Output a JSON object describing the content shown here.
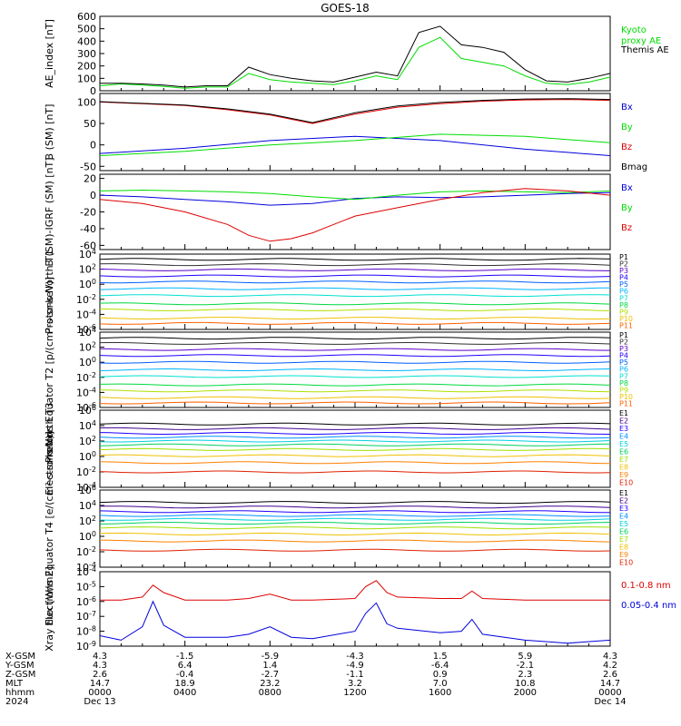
{
  "title": "GOES-18",
  "colors": {
    "black": "#000000",
    "green": "#00dd00",
    "blue": "#0000dd",
    "red": "#dd0000",
    "p": [
      "#000000",
      "#303030",
      "#5a00c8",
      "#2000ff",
      "#0060ff",
      "#00b4ff",
      "#00e0d0",
      "#00d840",
      "#b0e000",
      "#f0c000",
      "#ff6000"
    ],
    "e": [
      "#000000",
      "#400090",
      "#2000ff",
      "#0090ff",
      "#00d0e0",
      "#00d060",
      "#a0e000",
      "#f0c000",
      "#ff8000",
      "#e02000",
      "#a00000"
    ]
  },
  "chart_data": [
    {
      "type": "line",
      "ylabel": "AE_index [nT]",
      "ylim": [
        0,
        600
      ],
      "ticks": [
        "600",
        "500",
        "400",
        "300",
        "200",
        "100",
        "0"
      ],
      "series": [
        {
          "name": "Kyoto proxy AE",
          "label_lines": [
            "Kyoto",
            "proxy AE"
          ],
          "color": "green",
          "x": [
            0,
            1,
            2,
            3,
            4,
            5,
            6,
            7,
            8,
            9,
            10,
            11,
            12,
            13,
            14,
            15,
            16,
            17,
            18,
            19,
            20,
            21,
            22,
            23,
            24
          ],
          "y": [
            40,
            55,
            45,
            35,
            20,
            30,
            30,
            140,
            90,
            70,
            60,
            50,
            80,
            120,
            90,
            350,
            430,
            260,
            230,
            200,
            120,
            60,
            50,
            70,
            110
          ]
        },
        {
          "name": "Themis AE",
          "label_lines": [
            "Themis AE"
          ],
          "color": "black",
          "x": [
            0,
            1,
            2,
            3,
            4,
            5,
            6,
            7,
            8,
            9,
            10,
            11,
            12,
            13,
            14,
            15,
            16,
            17,
            18,
            19,
            20,
            21,
            22,
            23,
            24
          ],
          "y": [
            60,
            60,
            55,
            45,
            30,
            40,
            40,
            190,
            130,
            100,
            80,
            70,
            110,
            150,
            120,
            470,
            520,
            370,
            350,
            310,
            170,
            80,
            70,
            100,
            140
          ]
        }
      ]
    },
    {
      "type": "line",
      "ylabel": "B (SM) [nT]",
      "ylim": [
        -60,
        120
      ],
      "ticks": [
        "100",
        "50",
        "0",
        "-50"
      ],
      "series": [
        {
          "name": "Bx",
          "color": "blue",
          "x": [
            0,
            4,
            8,
            12,
            16,
            20,
            24
          ],
          "y": [
            -20,
            -8,
            10,
            20,
            10,
            -10,
            -25
          ]
        },
        {
          "name": "By",
          "color": "green",
          "x": [
            0,
            4,
            8,
            12,
            16,
            20,
            24
          ],
          "y": [
            -25,
            -15,
            0,
            10,
            25,
            20,
            5
          ]
        },
        {
          "name": "Bz",
          "color": "red",
          "x": [
            0,
            2,
            4,
            6,
            8,
            10,
            12,
            14,
            16,
            18,
            20,
            22,
            24
          ],
          "y": [
            100,
            96,
            92,
            82,
            70,
            50,
            72,
            88,
            96,
            102,
            105,
            106,
            104
          ]
        },
        {
          "name": "Bmag",
          "color": "black",
          "x": [
            0,
            2,
            4,
            6,
            8,
            10,
            12,
            14,
            16,
            18,
            20,
            22,
            24
          ],
          "y": [
            101,
            97,
            93,
            84,
            72,
            52,
            75,
            91,
            99,
            104,
            107,
            108,
            106
          ]
        }
      ]
    },
    {
      "type": "line",
      "ylabel": "B (SM)-IGRF (SM) [nT]",
      "ylim": [
        -65,
        25
      ],
      "ticks": [
        "20",
        "0",
        "-20",
        "-40",
        "-60"
      ],
      "series": [
        {
          "name": "Bx",
          "color": "blue",
          "x": [
            0,
            2,
            4,
            6,
            8,
            10,
            12,
            14,
            16,
            18,
            20,
            22,
            24
          ],
          "y": [
            0,
            -2,
            -5,
            -8,
            -12,
            -10,
            -4,
            -2,
            -3,
            -2,
            0,
            2,
            3
          ]
        },
        {
          "name": "By",
          "color": "green",
          "x": [
            0,
            2,
            4,
            6,
            8,
            10,
            12,
            14,
            16,
            18,
            20,
            22,
            24
          ],
          "y": [
            5,
            6,
            5,
            4,
            2,
            -2,
            -5,
            0,
            4,
            5,
            4,
            3,
            5
          ]
        },
        {
          "name": "Bz",
          "color": "red",
          "x": [
            0,
            2,
            4,
            6,
            7,
            8,
            9,
            10,
            11,
            12,
            14,
            16,
            18,
            20,
            22,
            24
          ],
          "y": [
            -5,
            -10,
            -20,
            -35,
            -48,
            -55,
            -52,
            -45,
            -35,
            -25,
            -15,
            -5,
            3,
            8,
            5,
            0
          ]
        }
      ]
    },
    {
      "type": "line",
      "ylabel": "Protons North T1",
      "log": true,
      "ylim": [
        -6,
        4
      ],
      "ticks": [
        "10^4",
        "10^2",
        "10^0",
        "10^-2",
        "10^-4",
        "10^-6"
      ],
      "legend": [
        "P1",
        "P2",
        "P3",
        "P4",
        "P5",
        "P6",
        "P7",
        "P8",
        "P9",
        "P10",
        "P11"
      ],
      "levels": [
        3.3,
        2.6,
        1.9,
        1.1,
        0.3,
        -0.6,
        -1.5,
        -2.6,
        -3.4,
        -4.5,
        -5.2
      ]
    },
    {
      "type": "line",
      "ylabel": "Protons Equator T2 [p/(cm²-s-sr-keV)]",
      "log": true,
      "ylim": [
        -6,
        4
      ],
      "ticks": [
        "10^4",
        "10^2",
        "10^0",
        "10^-2",
        "10^-4",
        "10^-6"
      ],
      "legend": [
        "P1",
        "P2",
        "P3",
        "P4",
        "P5",
        "P6",
        "P7",
        "P8",
        "P9",
        "P10",
        "P11"
      ],
      "levels": [
        3.2,
        2.5,
        1.7,
        0.9,
        0.0,
        -1.0,
        -1.9,
        -3.0,
        -3.8,
        -4.7,
        -5.4
      ]
    },
    {
      "type": "line",
      "ylabel": "Electrons North T3",
      "log": true,
      "ylim": [
        -4,
        6
      ],
      "ticks": [
        "10^6",
        "10^4",
        "10^2",
        "10^0",
        "10^-2",
        "10^-4"
      ],
      "legend": [
        "E1",
        "E2",
        "E3",
        "E4",
        "E5",
        "E6",
        "E7",
        "E8",
        "E9",
        "E10"
      ],
      "levels": [
        4.2,
        3.6,
        3.0,
        2.5,
        2.0,
        1.5,
        0.9,
        0.1,
        -0.8,
        -2.0
      ]
    },
    {
      "type": "line",
      "ylabel": "Electrons Equator T4 [e/(cm²-s-sr-keV)]",
      "log": true,
      "ylim": [
        -4,
        6
      ],
      "ticks": [
        "10^6",
        "10^4",
        "10^2",
        "10^0",
        "10^-2",
        "10^-4"
      ],
      "legend": [
        "E1",
        "E2",
        "E3",
        "E4",
        "E5",
        "E6",
        "E7",
        "E8",
        "E9",
        "E10"
      ],
      "levels": [
        4.4,
        3.8,
        3.2,
        2.7,
        2.2,
        1.7,
        1.1,
        0.3,
        -0.6,
        -1.8
      ]
    },
    {
      "type": "line",
      "ylabel": "Xray flux [W/m2]",
      "log": true,
      "ylim": [
        -9,
        -4
      ],
      "ticks": [
        "10^-4",
        "10^-5",
        "10^-6",
        "10^-7",
        "10^-8",
        "10^-9"
      ],
      "series": [
        {
          "name": "0.1-0.8 nm",
          "color": "red",
          "x": [
            0,
            1,
            2,
            2.5,
            3,
            4,
            6,
            7,
            8,
            9,
            10,
            12,
            12.5,
            13,
            13.5,
            14,
            16,
            17,
            17.5,
            18,
            20,
            22,
            24
          ],
          "y": [
            -5.9,
            -5.9,
            -5.7,
            -4.9,
            -5.4,
            -5.9,
            -5.9,
            -5.8,
            -5.5,
            -5.9,
            -5.9,
            -5.8,
            -5.0,
            -4.6,
            -5.4,
            -5.7,
            -5.8,
            -5.8,
            -5.3,
            -5.8,
            -5.9,
            -5.9,
            -5.9
          ]
        },
        {
          "name": "0.05-0.4 nm",
          "color": "blue",
          "x": [
            0,
            1,
            2,
            2.5,
            3,
            4,
            6,
            7,
            8,
            9,
            10,
            12,
            12.5,
            13,
            13.5,
            14,
            16,
            17,
            17.5,
            18,
            20,
            22,
            24
          ],
          "y": [
            -8.3,
            -8.6,
            -7.7,
            -6.0,
            -7.6,
            -8.4,
            -8.4,
            -8.2,
            -7.7,
            -8.4,
            -8.5,
            -8.0,
            -6.8,
            -6.1,
            -7.5,
            -7.8,
            -8.1,
            -8.0,
            -7.2,
            -8.2,
            -8.6,
            -8.8,
            -8.6
          ]
        }
      ]
    }
  ],
  "orbit": {
    "rows": [
      "X-GSM",
      "Y-GSM",
      "Z-GSM",
      "MLT",
      "hhmm",
      "2024"
    ],
    "cols": [
      {
        "vals": [
          "4.3",
          "4.3",
          "2.6",
          "14.7",
          "0000",
          "Dec 13"
        ]
      },
      {
        "vals": [
          "-1.5",
          "6.4",
          "-0.4",
          "18.9",
          "0400",
          ""
        ]
      },
      {
        "vals": [
          "-5.9",
          "1.4",
          "-2.7",
          "23.2",
          "0800",
          ""
        ]
      },
      {
        "vals": [
          "-4.3",
          "-4.9",
          "-1.1",
          "3.2",
          "1200",
          ""
        ]
      },
      {
        "vals": [
          "1.5",
          "-6.4",
          "0.9",
          "7.0",
          "1600",
          ""
        ]
      },
      {
        "vals": [
          "5.9",
          "-2.1",
          "2.3",
          "10.8",
          "2000",
          ""
        ]
      },
      {
        "vals": [
          "4.3",
          "4.2",
          "2.6",
          "14.7",
          "0000",
          "Dec 14"
        ]
      }
    ]
  }
}
